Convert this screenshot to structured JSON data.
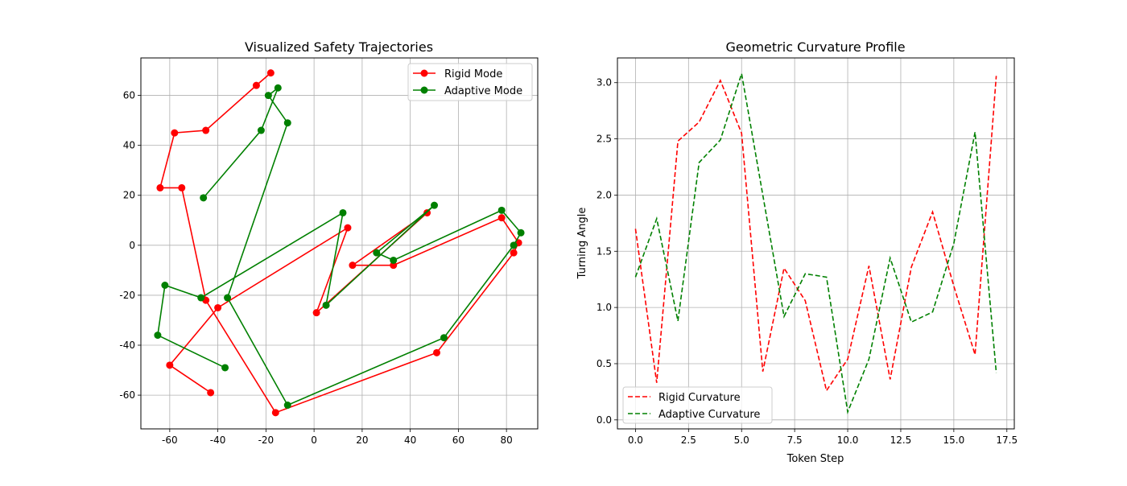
{
  "chart_data": [
    {
      "type": "line",
      "title": "Visualized Safety Trajectories",
      "xlabel": "",
      "ylabel": "",
      "xlim": [
        -72,
        93
      ],
      "ylim": [
        -73.5,
        75
      ],
      "xticks": [
        -60,
        -40,
        -20,
        0,
        20,
        40,
        60,
        80
      ],
      "yticks": [
        -60,
        -40,
        -20,
        0,
        20,
        40,
        60
      ],
      "grid": true,
      "legend": "top-right",
      "series": [
        {
          "name": "Rigid Mode",
          "color": "#ff0000",
          "marker": "circle",
          "x": [
            -43,
            -60,
            -40,
            14,
            1,
            47,
            16,
            33,
            78,
            85,
            83,
            51,
            -16,
            -45,
            -55,
            -64,
            -58,
            -45,
            -24,
            -18
          ],
          "y": [
            -59,
            -48,
            -25,
            7,
            -27,
            13,
            -8,
            -8,
            11,
            1,
            -3,
            -43,
            -67,
            -22,
            23,
            23,
            45,
            46,
            64,
            69
          ]
        },
        {
          "name": "Adaptive Mode",
          "color": "#008000",
          "marker": "circle",
          "x": [
            -37,
            -65,
            -62,
            -47,
            12,
            5,
            50,
            26,
            33,
            78,
            86,
            83,
            54,
            -11,
            -36,
            -11,
            -19,
            -15,
            -22,
            -46
          ],
          "y": [
            -49,
            -36,
            -16,
            -21,
            13,
            -24,
            16,
            -3,
            -6,
            14,
            5,
            0,
            -37,
            -64,
            -21,
            49,
            60,
            63,
            46,
            19
          ]
        }
      ]
    },
    {
      "type": "line",
      "title": "Geometric Curvature Profile",
      "xlabel": "Token Step",
      "ylabel": "Turning Angle",
      "xlim": [
        -0.85,
        17.85
      ],
      "ylim": [
        -0.08,
        3.22
      ],
      "xticks": [
        0,
        2.5,
        5,
        7.5,
        10,
        12.5,
        15,
        17.5
      ],
      "xtick_labels": [
        "0.0",
        "2.5",
        "5.0",
        "7.5",
        "10.0",
        "12.5",
        "15.0",
        "17.5"
      ],
      "yticks": [
        0,
        0.5,
        1,
        1.5,
        2,
        2.5,
        3
      ],
      "ytick_labels": [
        "0.0",
        "0.5",
        "1.0",
        "1.5",
        "2.0",
        "2.5",
        "3.0"
      ],
      "grid": true,
      "legend": "bottom-left",
      "x": [
        0,
        1,
        2,
        3,
        4,
        5,
        6,
        7,
        8,
        9,
        10,
        11,
        12,
        13,
        14,
        15,
        16,
        17
      ],
      "series": [
        {
          "name": "Rigid Curvature",
          "color": "#ff0000",
          "linestyle": "dashed",
          "values": [
            1.7,
            0.33,
            2.48,
            2.65,
            3.02,
            2.55,
            0.43,
            1.35,
            1.06,
            0.26,
            0.54,
            1.37,
            0.36,
            1.36,
            1.85,
            1.19,
            0.58,
            3.06
          ]
        },
        {
          "name": "Adaptive Curvature",
          "color": "#008000",
          "linestyle": "dashed",
          "values": [
            1.27,
            1.79,
            0.88,
            2.29,
            2.49,
            3.08,
            2.0,
            0.92,
            1.3,
            1.27,
            0.07,
            0.54,
            1.44,
            0.87,
            0.96,
            1.57,
            2.56,
            0.42
          ]
        }
      ]
    }
  ]
}
